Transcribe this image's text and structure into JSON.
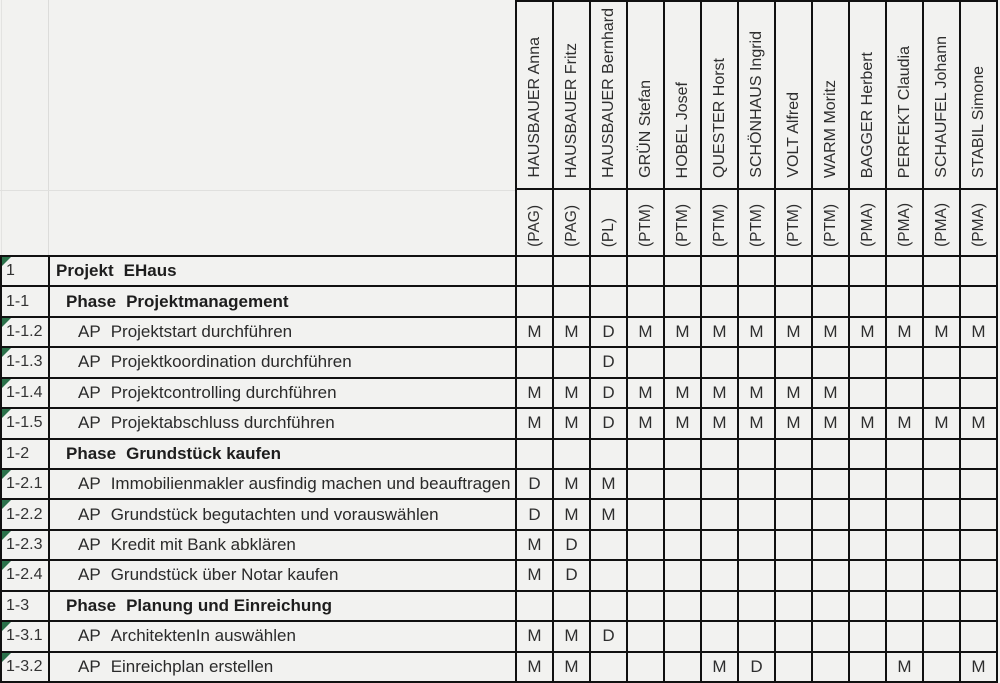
{
  "matrix_legend": {
    "main_responsibility": "D",
    "member": "M"
  },
  "people": [
    {
      "name": "HAUSBAUER Anna",
      "role": "(PAG)"
    },
    {
      "name": "HAUSBAUER Fritz",
      "role": "(PAG)"
    },
    {
      "name": "HAUSBAUER Bernhard",
      "role": "(PL)"
    },
    {
      "name": "GRÜN Stefan",
      "role": "(PTM)"
    },
    {
      "name": "HOBEL Josef",
      "role": "(PTM)"
    },
    {
      "name": "QUESTER Horst",
      "role": "(PTM)"
    },
    {
      "name": "SCHÖNHAUS Ingrid",
      "role": "(PTM)"
    },
    {
      "name": "VOLT Alfred",
      "role": "(PTM)"
    },
    {
      "name": "WARM Moritz",
      "role": "(PTM)"
    },
    {
      "name": "BAGGER Herbert",
      "role": "(PMA)"
    },
    {
      "name": "PERFEKT Claudia",
      "role": "(PMA)"
    },
    {
      "name": "SCHAUFEL Johann",
      "role": "(PMA)"
    },
    {
      "name": "STABIL Simone",
      "role": "(PMA)"
    }
  ],
  "rows": [
    {
      "id": "1",
      "prefix": "Projekt",
      "title": "EHaus",
      "level": "project",
      "flag": true,
      "cells": [
        "",
        "",
        "",
        "",
        "",
        "",
        "",
        "",
        "",
        "",
        "",
        "",
        ""
      ]
    },
    {
      "id": "1-1",
      "prefix": "Phase",
      "title": "Projektmanagement",
      "level": "phase",
      "flag": false,
      "cells": [
        "",
        "",
        "",
        "",
        "",
        "",
        "",
        "",
        "",
        "",
        "",
        "",
        ""
      ]
    },
    {
      "id": "1-1.2",
      "prefix": "AP",
      "title": "Projektstart durchführen",
      "level": "ap",
      "flag": true,
      "cells": [
        "M",
        "M",
        "D",
        "M",
        "M",
        "M",
        "M",
        "M",
        "M",
        "M",
        "M",
        "M",
        "M"
      ]
    },
    {
      "id": "1-1.3",
      "prefix": "AP",
      "title": "Projektkoordination durchführen",
      "level": "ap",
      "flag": true,
      "cells": [
        "",
        "",
        "D",
        "",
        "",
        "",
        "",
        "",
        "",
        "",
        "",
        "",
        ""
      ]
    },
    {
      "id": "1-1.4",
      "prefix": "AP",
      "title": "Projektcontrolling durchführen",
      "level": "ap",
      "flag": true,
      "cells": [
        "M",
        "M",
        "D",
        "M",
        "M",
        "M",
        "M",
        "M",
        "M",
        "",
        "",
        "",
        ""
      ]
    },
    {
      "id": "1-1.5",
      "prefix": "AP",
      "title": "Projektabschluss durchführen",
      "level": "ap",
      "flag": true,
      "cells": [
        "M",
        "M",
        "D",
        "M",
        "M",
        "M",
        "M",
        "M",
        "M",
        "M",
        "M",
        "M",
        "M"
      ]
    },
    {
      "id": "1-2",
      "prefix": "Phase",
      "title": "Grundstück kaufen",
      "level": "phase",
      "flag": false,
      "cells": [
        "",
        "",
        "",
        "",
        "",
        "",
        "",
        "",
        "",
        "",
        "",
        "",
        ""
      ]
    },
    {
      "id": "1-2.1",
      "prefix": "AP",
      "title": "Immobilienmakler ausfindig machen und beauftragen",
      "level": "ap",
      "flag": true,
      "cells": [
        "D",
        "M",
        "M",
        "",
        "",
        "",
        "",
        "",
        "",
        "",
        "",
        "",
        ""
      ]
    },
    {
      "id": "1-2.2",
      "prefix": "AP",
      "title": "Grundstück begutachten und vorauswählen",
      "level": "ap",
      "flag": true,
      "cells": [
        "D",
        "M",
        "M",
        "",
        "",
        "",
        "",
        "",
        "",
        "",
        "",
        "",
        ""
      ]
    },
    {
      "id": "1-2.3",
      "prefix": "AP",
      "title": "Kredit mit Bank abklären",
      "level": "ap",
      "flag": true,
      "cells": [
        "M",
        "D",
        "",
        "",
        "",
        "",
        "",
        "",
        "",
        "",
        "",
        "",
        ""
      ]
    },
    {
      "id": "1-2.4",
      "prefix": "AP",
      "title": "Grundstück über Notar kaufen",
      "level": "ap",
      "flag": true,
      "cells": [
        "M",
        "D",
        "",
        "",
        "",
        "",
        "",
        "",
        "",
        "",
        "",
        "",
        ""
      ]
    },
    {
      "id": "1-3",
      "prefix": "Phase",
      "title": "Planung und Einreichung",
      "level": "phase",
      "flag": false,
      "cells": [
        "",
        "",
        "",
        "",
        "",
        "",
        "",
        "",
        "",
        "",
        "",
        "",
        ""
      ]
    },
    {
      "id": "1-3.1",
      "prefix": "AP",
      "title": "ArchitektenIn auswählen",
      "level": "ap",
      "flag": true,
      "cells": [
        "M",
        "M",
        "D",
        "",
        "",
        "",
        "",
        "",
        "",
        "",
        "",
        "",
        ""
      ]
    },
    {
      "id": "1-3.2",
      "prefix": "AP",
      "title": "Einreichplan erstellen",
      "level": "ap",
      "flag": true,
      "cells": [
        "M",
        "M",
        "",
        "",
        "",
        "M",
        "D",
        "",
        "",
        "",
        "M",
        "",
        "M"
      ]
    }
  ],
  "colors": {
    "background": "#f2f2f0",
    "grid_border": "#111111",
    "flag_green": "#2b714a",
    "faint_gridline": "#dcdcda"
  }
}
